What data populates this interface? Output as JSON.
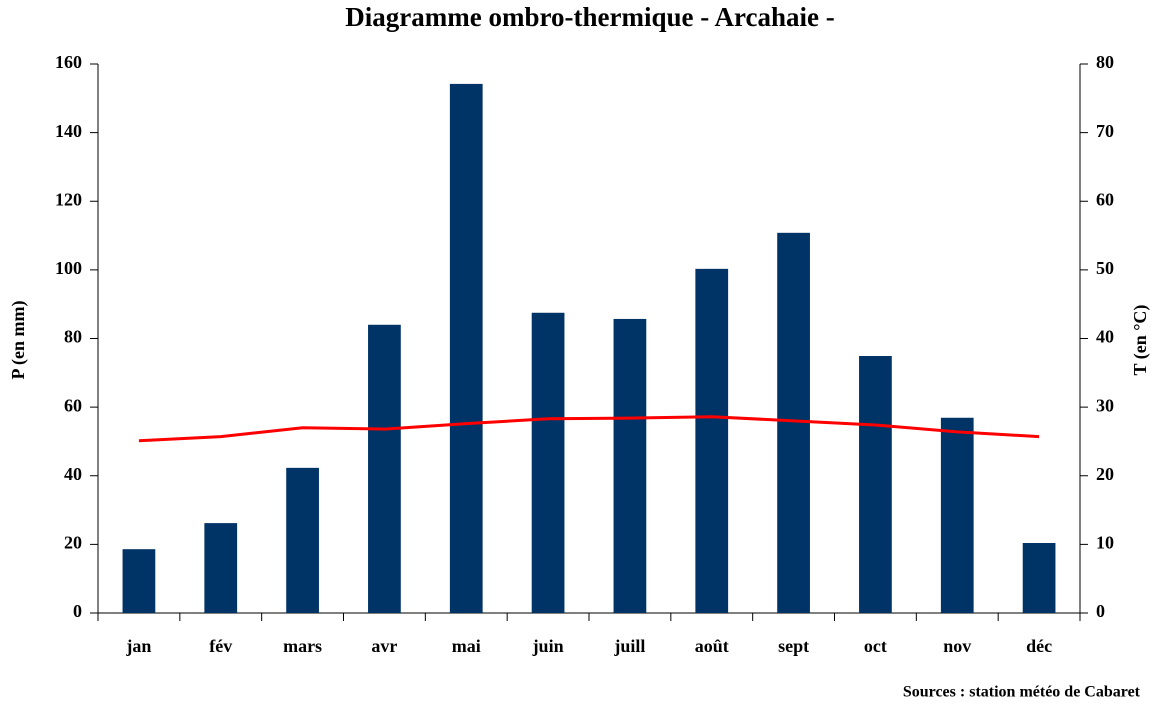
{
  "chart_data": {
    "type": "bar",
    "title": "Diagramme ombro-thermique - Arcahaie -",
    "y_label": "P (en mm)",
    "y2_label": "T (en °C)",
    "source": "Sources : station météo de Cabaret",
    "categories": [
      "jan",
      "fév",
      "mars",
      "avr",
      "mai",
      "juin",
      "juill",
      "août",
      "sept",
      "oct",
      "nov",
      "déc"
    ],
    "series": [
      {
        "name": "P",
        "type": "bar",
        "color": "#003366",
        "values": [
          18.6,
          26.2,
          42.3,
          84,
          154.2,
          87.5,
          85.7,
          100.3,
          110.8,
          74.9,
          56.9,
          20.4
        ]
      },
      {
        "name": "T",
        "type": "line",
        "axis": "y2",
        "color": "#ff0000",
        "values": [
          25.1,
          25.7,
          27.0,
          26.8,
          27.6,
          28.3,
          28.4,
          28.6,
          28.0,
          27.4,
          26.4,
          25.7
        ]
      }
    ],
    "ylim": [
      0,
      160
    ],
    "yticks": [
      0,
      20,
      40,
      60,
      80,
      100,
      120,
      140,
      160
    ],
    "y2lim": [
      0,
      80
    ],
    "y2ticks": [
      0,
      10,
      20,
      30,
      40,
      50,
      60,
      70,
      80
    ],
    "grid": false
  }
}
